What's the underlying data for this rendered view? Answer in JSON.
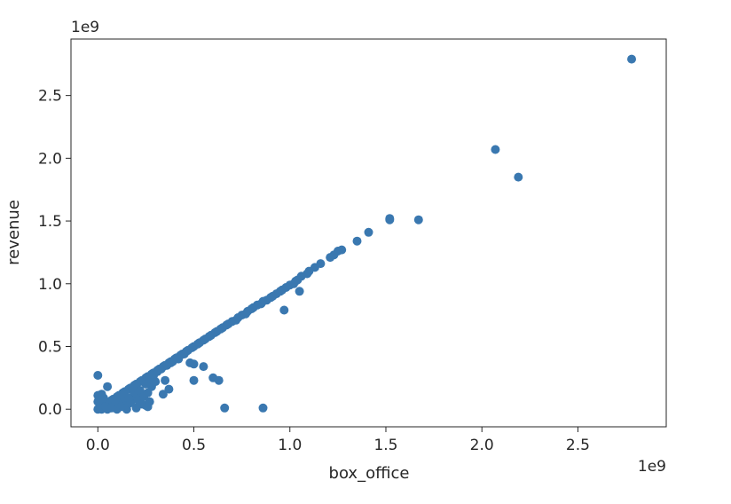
{
  "chart_data": {
    "type": "scatter",
    "title": "",
    "xlabel": "box_office",
    "ylabel": "revenue",
    "x_offset_text": "1e9",
    "y_offset_text": "1e9",
    "xlim": [
      -0.14,
      2.96
    ],
    "ylim": [
      -0.14,
      2.95
    ],
    "xticks": [
      0.0,
      0.5,
      1.0,
      1.5,
      2.0,
      2.5
    ],
    "xtick_labels": [
      "0.0",
      "0.5",
      "1.0",
      "1.5",
      "2.0",
      "2.5"
    ],
    "yticks": [
      0.0,
      0.5,
      1.0,
      1.5,
      2.0,
      2.5
    ],
    "ytick_labels": [
      "0.0",
      "0.5",
      "1.0",
      "1.5",
      "2.0",
      "2.5"
    ],
    "units": "1e9",
    "grid": false,
    "marker_color": "#3a78b0",
    "points": [
      [
        2.78,
        2.79
      ],
      [
        2.07,
        2.07
      ],
      [
        2.19,
        1.85
      ],
      [
        1.52,
        1.52
      ],
      [
        1.52,
        1.51
      ],
      [
        1.67,
        1.51
      ],
      [
        1.41,
        1.41
      ],
      [
        1.35,
        1.34
      ],
      [
        1.27,
        1.27
      ],
      [
        1.25,
        1.26
      ],
      [
        1.23,
        1.23
      ],
      [
        1.21,
        1.21
      ],
      [
        1.16,
        1.16
      ],
      [
        1.13,
        1.13
      ],
      [
        1.1,
        1.1
      ],
      [
        1.09,
        1.08
      ],
      [
        1.06,
        1.06
      ],
      [
        1.04,
        1.03
      ],
      [
        1.03,
        1.02
      ],
      [
        1.02,
        1.0
      ],
      [
        1.0,
        0.99
      ],
      [
        0.98,
        0.97
      ],
      [
        0.96,
        0.95
      ],
      [
        0.95,
        0.94
      ],
      [
        0.93,
        0.92
      ],
      [
        0.91,
        0.9
      ],
      [
        0.9,
        0.89
      ],
      [
        0.88,
        0.87
      ],
      [
        0.86,
        0.86
      ],
      [
        0.85,
        0.84
      ],
      [
        0.83,
        0.83
      ],
      [
        0.81,
        0.81
      ],
      [
        0.8,
        0.8
      ],
      [
        0.78,
        0.78
      ],
      [
        0.77,
        0.76
      ],
      [
        0.75,
        0.75
      ],
      [
        0.73,
        0.73
      ],
      [
        0.72,
        0.71
      ],
      [
        0.7,
        0.7
      ],
      [
        0.68,
        0.68
      ],
      [
        0.67,
        0.67
      ],
      [
        0.65,
        0.65
      ],
      [
        0.64,
        0.64
      ],
      [
        0.62,
        0.62
      ],
      [
        0.61,
        0.61
      ],
      [
        0.59,
        0.59
      ],
      [
        0.58,
        0.58
      ],
      [
        0.56,
        0.56
      ],
      [
        0.55,
        0.55
      ],
      [
        0.53,
        0.53
      ],
      [
        0.52,
        0.52
      ],
      [
        0.5,
        0.5
      ],
      [
        0.49,
        0.49
      ],
      [
        0.47,
        0.47
      ],
      [
        0.46,
        0.46
      ],
      [
        0.44,
        0.44
      ],
      [
        0.43,
        0.43
      ],
      [
        0.41,
        0.41
      ],
      [
        0.4,
        0.4
      ],
      [
        0.38,
        0.38
      ],
      [
        0.37,
        0.37
      ],
      [
        0.35,
        0.35
      ],
      [
        0.34,
        0.34
      ],
      [
        0.32,
        0.32
      ],
      [
        0.31,
        0.31
      ],
      [
        0.29,
        0.29
      ],
      [
        0.28,
        0.28
      ],
      [
        0.26,
        0.26
      ],
      [
        0.25,
        0.25
      ],
      [
        0.23,
        0.23
      ],
      [
        0.22,
        0.22
      ],
      [
        0.2,
        0.2
      ],
      [
        0.19,
        0.19
      ],
      [
        0.17,
        0.17
      ],
      [
        0.16,
        0.16
      ],
      [
        0.14,
        0.14
      ],
      [
        0.13,
        0.13
      ],
      [
        0.11,
        0.11
      ],
      [
        0.1,
        0.1
      ],
      [
        0.08,
        0.08
      ],
      [
        0.07,
        0.07
      ],
      [
        0.05,
        0.05
      ],
      [
        0.04,
        0.04
      ],
      [
        0.02,
        0.02
      ],
      [
        0.01,
        0.01
      ],
      [
        0.97,
        0.79
      ],
      [
        1.05,
        0.94
      ],
      [
        0.48,
        0.37
      ],
      [
        0.5,
        0.36
      ],
      [
        0.55,
        0.34
      ],
      [
        0.6,
        0.25
      ],
      [
        0.63,
        0.23
      ],
      [
        0.5,
        0.23
      ],
      [
        0.66,
        0.01
      ],
      [
        0.86,
        0.01
      ],
      [
        0.35,
        0.23
      ],
      [
        0.37,
        0.16
      ],
      [
        0.34,
        0.12
      ],
      [
        0.27,
        0.06
      ],
      [
        0.25,
        0.03
      ],
      [
        0.2,
        0.01
      ],
      [
        0.15,
        0.0
      ],
      [
        0.1,
        0.0
      ],
      [
        0.05,
        0.0
      ],
      [
        0.0,
        0.0
      ],
      [
        0.02,
        0.0
      ],
      [
        0.0,
        0.27
      ],
      [
        0.05,
        0.18
      ],
      [
        0.0,
        0.11
      ],
      [
        0.01,
        0.05
      ],
      [
        0.03,
        0.09
      ],
      [
        0.06,
        0.04
      ],
      [
        0.08,
        0.06
      ],
      [
        0.12,
        0.05
      ],
      [
        0.14,
        0.08
      ],
      [
        0.18,
        0.1
      ],
      [
        0.2,
        0.12
      ],
      [
        0.22,
        0.15
      ],
      [
        0.15,
        0.03
      ],
      [
        0.12,
        0.02
      ],
      [
        0.09,
        0.01
      ],
      [
        0.17,
        0.05
      ],
      [
        0.21,
        0.07
      ],
      [
        0.24,
        0.1
      ],
      [
        0.26,
        0.13
      ],
      [
        0.28,
        0.18
      ],
      [
        0.3,
        0.22
      ],
      [
        0.04,
        0.02
      ],
      [
        0.07,
        0.01
      ],
      [
        0.11,
        0.04
      ],
      [
        0.16,
        0.09
      ],
      [
        0.19,
        0.14
      ],
      [
        0.23,
        0.04
      ],
      [
        0.26,
        0.02
      ],
      [
        0.13,
        0.12
      ],
      [
        0.18,
        0.17
      ],
      [
        0.09,
        0.07
      ],
      [
        0.25,
        0.2
      ],
      [
        0.27,
        0.24
      ],
      [
        0.29,
        0.27
      ],
      [
        0.31,
        0.3
      ],
      [
        0.33,
        0.32
      ],
      [
        0.36,
        0.35
      ],
      [
        0.38,
        0.37
      ],
      [
        0.39,
        0.38
      ],
      [
        0.42,
        0.4
      ],
      [
        0.45,
        0.44
      ],
      [
        0.0,
        0.06
      ],
      [
        0.02,
        0.12
      ]
    ]
  }
}
